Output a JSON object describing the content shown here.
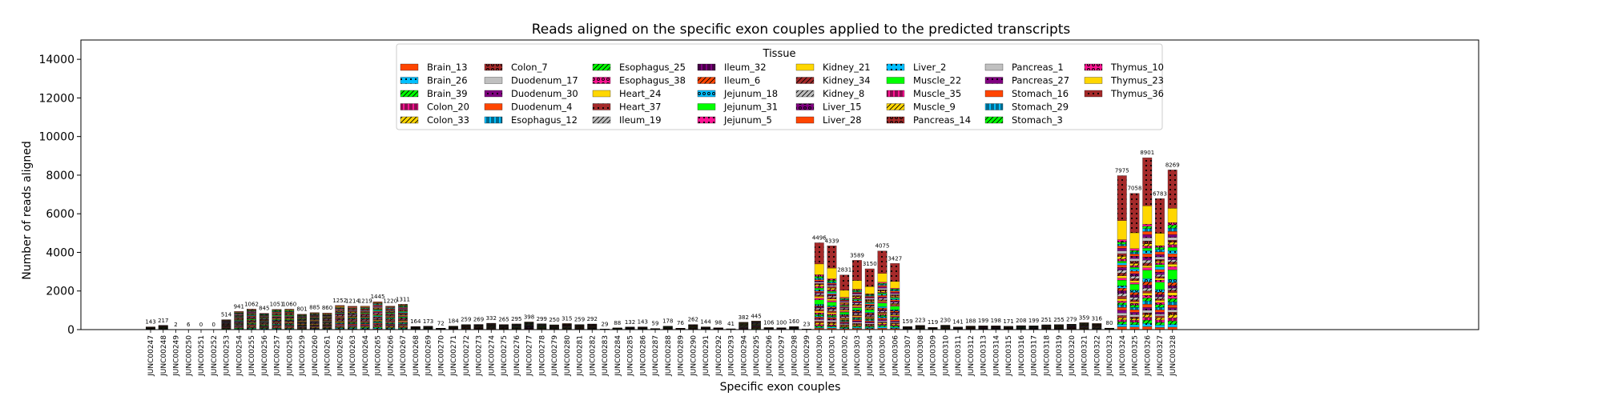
{
  "chart_data": {
    "type": "bar",
    "stacked": true,
    "title": "Reads aligned on the specific exon couples applied to the predicted transcripts",
    "xlabel": "Specific exon couples",
    "ylabel": "Number of reads aligned",
    "ylim": [
      0,
      15000
    ],
    "yticks": [
      "0",
      "2000",
      "4000",
      "6000",
      "8000",
      "10000",
      "12000",
      "14000"
    ],
    "legend_title": "Tissue",
    "legend_position": "top-center",
    "grid": false,
    "categories": [
      "JUNC00247",
      "JUNC00248",
      "JUNC00249",
      "JUNC00250",
      "JUNC00251",
      "JUNC00252",
      "JUNC00253",
      "JUNC00254",
      "JUNC00255",
      "JUNC00256",
      "JUNC00257",
      "JUNC00258",
      "JUNC00259",
      "JUNC00260",
      "JUNC00261",
      "JUNC00262",
      "JUNC00263",
      "JUNC00264",
      "JUNC00265",
      "JUNC00266",
      "JUNC00267",
      "JUNC00268",
      "JUNC00269",
      "JUNC00270",
      "JUNC00271",
      "JUNC00272",
      "JUNC00273",
      "JUNC00274",
      "JUNC00275",
      "JUNC00276",
      "JUNC00277",
      "JUNC00278",
      "JUNC00279",
      "JUNC00280",
      "JUNC00281",
      "JUNC00282",
      "JUNC00283",
      "JUNC00284",
      "JUNC00285",
      "JUNC00286",
      "JUNC00287",
      "JUNC00288",
      "JUNC00289",
      "JUNC00290",
      "JUNC00291",
      "JUNC00292",
      "JUNC00293",
      "JUNC00294",
      "JUNC00295",
      "JUNC00296",
      "JUNC00297",
      "JUNC00298",
      "JUNC00299",
      "JUNC00300",
      "JUNC00301",
      "JUNC00302",
      "JUNC00303",
      "JUNC00304",
      "JUNC00305",
      "JUNC00306",
      "JUNC00307",
      "JUNC00308",
      "JUNC00309",
      "JUNC00310",
      "JUNC00311",
      "JUNC00312",
      "JUNC00313",
      "JUNC00314",
      "JUNC00315",
      "JUNC00316",
      "JUNC00317",
      "JUNC00318",
      "JUNC00319",
      "JUNC00320",
      "JUNC00321",
      "JUNC00322",
      "JUNC00323",
      "JUNC00324",
      "JUNC00325",
      "JUNC00326",
      "JUNC00327",
      "JUNC00328"
    ],
    "totals": [
      143,
      217,
      2,
      6,
      0,
      0,
      514,
      941,
      1062,
      845,
      1051,
      1060,
      801,
      885,
      860,
      1252,
      1214,
      1219,
      1445,
      1220,
      1311,
      164,
      173,
      72,
      184,
      259,
      269,
      332,
      265,
      295,
      398,
      299,
      250,
      315,
      259,
      292,
      29,
      88,
      132,
      143,
      59,
      178,
      76,
      262,
      144,
      98,
      41,
      382,
      445,
      106,
      100,
      160,
      23,
      4496,
      4339,
      2831,
      3589,
      3150,
      4075,
      3427,
      159,
      223,
      119,
      230,
      141,
      188,
      199,
      198,
      171,
      208,
      199,
      251,
      255,
      279,
      359,
      316,
      80,
      7975,
      7058,
      8901,
      6783,
      8269
    ],
    "data_labels": [
      "143",
      "217",
      "2",
      "6",
      "0",
      "0",
      "514",
      "941",
      "1062",
      "845",
      "1051",
      "1060",
      "801",
      "885",
      "860",
      "1252",
      "1214",
      "1219",
      "1445",
      "1220",
      "1311",
      "164",
      "173",
      "72",
      "184",
      "259",
      "269",
      "332",
      "265",
      "295",
      "398",
      "299",
      "250",
      "315",
      "259",
      "292",
      "29",
      "88",
      "132",
      "143",
      "59",
      "178",
      "76",
      "262",
      "144",
      "98",
      "41",
      "382",
      "445",
      "106",
      "100",
      "160",
      "23",
      "4496",
      "4339",
      "2831",
      "3589",
      "3150",
      "4075",
      "3427",
      "159",
      "223",
      "119",
      "230",
      "141",
      "188",
      "199",
      "198",
      "171",
      "208",
      "199",
      "251",
      "255",
      "279",
      "359",
      "316",
      "80",
      "7975",
      "7058",
      "8901",
      "6783",
      "8269"
    ],
    "series": [
      {
        "name": "Brain_13",
        "color": "#ff4500",
        "pattern": "none"
      },
      {
        "name": "Brain_26",
        "color": "#00bfff",
        "pattern": "dot"
      },
      {
        "name": "Brain_39",
        "color": "#00ff00",
        "pattern": "slash"
      },
      {
        "name": "Colon_20",
        "color": "#ff1493",
        "pattern": "bar"
      },
      {
        "name": "Colon_33",
        "color": "#ffd700",
        "pattern": "slash"
      },
      {
        "name": "Colon_7",
        "color": "#a52a2a",
        "pattern": "circle"
      },
      {
        "name": "Duodenum_17",
        "color": "#c0c0c0",
        "pattern": "none"
      },
      {
        "name": "Duodenum_30",
        "color": "#800080",
        "pattern": "dot"
      },
      {
        "name": "Duodenum_4",
        "color": "#ff4500",
        "pattern": "none"
      },
      {
        "name": "Esophagus_12",
        "color": "#00bfff",
        "pattern": "bar"
      },
      {
        "name": "Esophagus_25",
        "color": "#00ff00",
        "pattern": "slash"
      },
      {
        "name": "Esophagus_38",
        "color": "#ff1493",
        "pattern": "circle"
      },
      {
        "name": "Heart_24",
        "color": "#ffd700",
        "pattern": "none"
      },
      {
        "name": "Heart_37",
        "color": "#a52a2a",
        "pattern": "dot"
      },
      {
        "name": "Ileum_19",
        "color": "#c0c0c0",
        "pattern": "slash"
      },
      {
        "name": "Ileum_32",
        "color": "#800080",
        "pattern": "bar"
      },
      {
        "name": "Ileum_6",
        "color": "#ff4500",
        "pattern": "slash"
      },
      {
        "name": "Jejunum_18",
        "color": "#00bfff",
        "pattern": "circle"
      },
      {
        "name": "Jejunum_31",
        "color": "#00ff00",
        "pattern": "none"
      },
      {
        "name": "Jejunum_5",
        "color": "#ff1493",
        "pattern": "dot"
      },
      {
        "name": "Kidney_21",
        "color": "#ffd700",
        "pattern": "none"
      },
      {
        "name": "Kidney_34",
        "color": "#a52a2a",
        "pattern": "slash"
      },
      {
        "name": "Kidney_8",
        "color": "#c0c0c0",
        "pattern": "slash"
      },
      {
        "name": "Liver_15",
        "color": "#800080",
        "pattern": "circle"
      },
      {
        "name": "Liver_28",
        "color": "#ff4500",
        "pattern": "none"
      },
      {
        "name": "Liver_2",
        "color": "#00bfff",
        "pattern": "dot"
      },
      {
        "name": "Muscle_22",
        "color": "#00ff00",
        "pattern": "none"
      },
      {
        "name": "Muscle_35",
        "color": "#ff1493",
        "pattern": "bar"
      },
      {
        "name": "Muscle_9",
        "color": "#ffd700",
        "pattern": "slash"
      },
      {
        "name": "Pancreas_14",
        "color": "#a52a2a",
        "pattern": "circle"
      },
      {
        "name": "Pancreas_1",
        "color": "#c0c0c0",
        "pattern": "none"
      },
      {
        "name": "Pancreas_27",
        "color": "#800080",
        "pattern": "dot"
      },
      {
        "name": "Stomach_16",
        "color": "#ff4500",
        "pattern": "none"
      },
      {
        "name": "Stomach_29",
        "color": "#00bfff",
        "pattern": "bar"
      },
      {
        "name": "Stomach_3",
        "color": "#00ff00",
        "pattern": "slash"
      },
      {
        "name": "Thymus_10",
        "color": "#ff1493",
        "pattern": "circle"
      },
      {
        "name": "Thymus_23",
        "color": "#ffd700",
        "pattern": "none"
      },
      {
        "name": "Thymus_36",
        "color": "#a52a2a",
        "pattern": "dot"
      }
    ]
  }
}
